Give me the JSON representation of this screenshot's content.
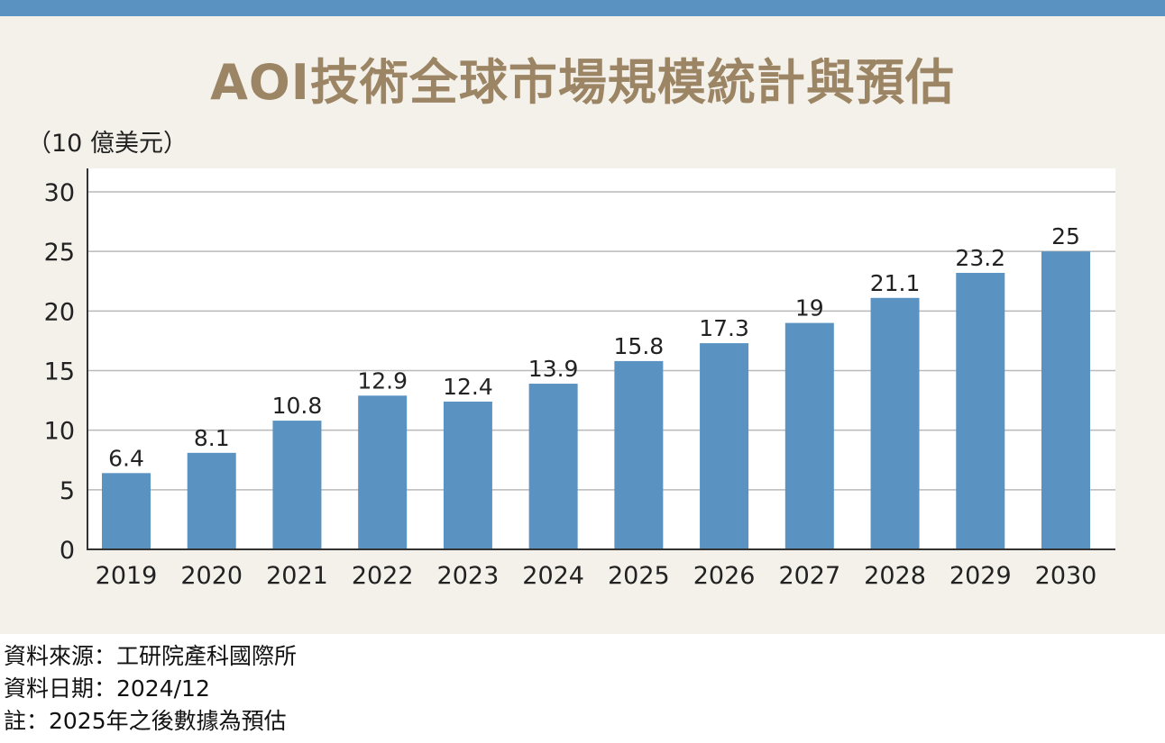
{
  "chart_data": {
    "type": "bar",
    "title": "AOI技術全球市場規模統計與預估",
    "ylabel": "（10 億美元）",
    "categories": [
      "2019",
      "2020",
      "2021",
      "2022",
      "2023",
      "2024",
      "2025",
      "2026",
      "2027",
      "2028",
      "2029",
      "2030"
    ],
    "values": [
      6.4,
      8.1,
      10.8,
      12.9,
      12.4,
      13.9,
      15.8,
      17.3,
      19,
      21.1,
      23.2,
      25
    ],
    "value_labels": [
      "6.4",
      "8.1",
      "10.8",
      "12.9",
      "12.4",
      "13.9",
      "15.8",
      "17.3",
      "19",
      "21.1",
      "23.2",
      "25"
    ],
    "ylim": [
      0,
      30
    ],
    "yticks": [
      0,
      5,
      10,
      15,
      20,
      25,
      30
    ],
    "grid": true,
    "bar_color": "#5a93c2"
  },
  "notes": {
    "source": "資料來源：工研院產科國際所",
    "date": "資料日期：2024/12",
    "remark": "註：2025年之後數據為預估"
  },
  "colors": {
    "accent": "#5a93c2",
    "title": "#9b8564",
    "background": "#f4f1ea"
  }
}
